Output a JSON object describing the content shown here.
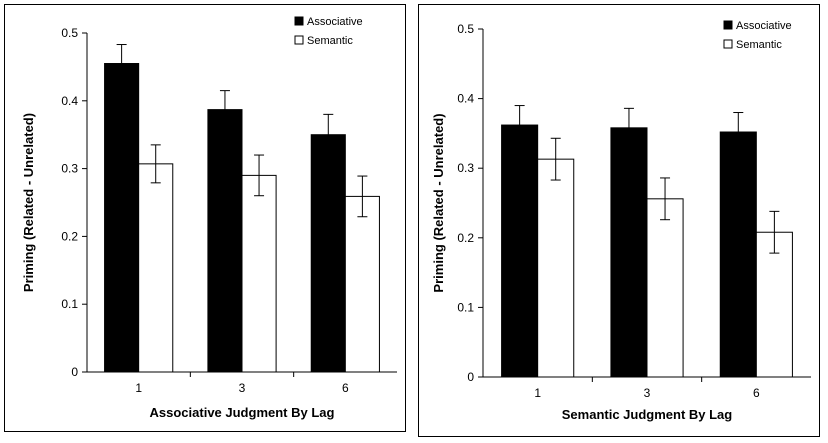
{
  "chart_data": [
    {
      "type": "bar",
      "categories": [
        "1",
        "3",
        "6"
      ],
      "xlabel": "Associative Judgment By Lag",
      "ylabel": "Priming (Related - Unrelated)",
      "ylim": [
        0,
        0.5
      ],
      "yticks": [
        "0",
        "0.1",
        "0.2",
        "0.3",
        "0.4",
        "0.5"
      ],
      "grid": false,
      "legend_position": "top-right",
      "series": [
        {
          "name": "Associative",
          "color": "#000000",
          "values": [
            0.455,
            0.387,
            0.35
          ],
          "errors": [
            0.028,
            0.028,
            0.03
          ]
        },
        {
          "name": "Semantic",
          "color": "#ffffff",
          "values": [
            0.307,
            0.29,
            0.259
          ],
          "errors": [
            0.028,
            0.03,
            0.03
          ]
        }
      ]
    },
    {
      "type": "bar",
      "categories": [
        "1",
        "3",
        "6"
      ],
      "xlabel": "Semantic Judgment By Lag",
      "ylabel": "Priming (Related - Unrelated)",
      "ylim": [
        0,
        0.5
      ],
      "yticks": [
        "0",
        "0.1",
        "0.2",
        "0.3",
        "0.4",
        "0.5"
      ],
      "grid": false,
      "legend_position": "top-right",
      "series": [
        {
          "name": "Associative",
          "color": "#000000",
          "values": [
            0.362,
            0.358,
            0.352
          ],
          "errors": [
            0.028,
            0.028,
            0.028
          ]
        },
        {
          "name": "Semantic",
          "color": "#ffffff",
          "values": [
            0.313,
            0.256,
            0.208
          ],
          "errors": [
            0.03,
            0.03,
            0.03
          ]
        }
      ]
    }
  ]
}
